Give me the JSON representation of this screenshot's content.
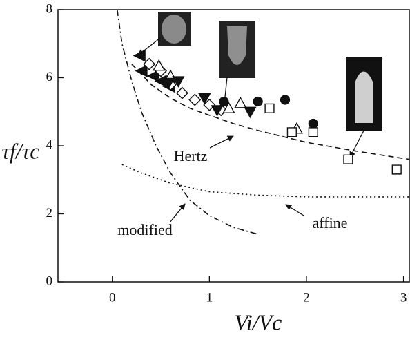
{
  "chart_data": {
    "type": "scatter",
    "xlabel": "Vi/Vc",
    "ylabel": "τf/τc",
    "xlim": [
      -0.56,
      3.06
    ],
    "ylim": [
      0,
      8
    ],
    "xticks": [
      0,
      1,
      2,
      3
    ],
    "yticks": [
      0,
      2,
      4,
      6,
      8
    ],
    "annotations": [
      "Hertz",
      "modified",
      "affine"
    ],
    "curves": [
      {
        "label_index": 0,
        "dash": "8,5",
        "color": "#111111",
        "x": [
          0.2,
          0.4,
          0.6,
          0.8,
          1.0,
          1.25,
          1.5,
          2.0,
          2.5,
          3.06
        ],
        "y": [
          6.4,
          5.8,
          5.4,
          5.1,
          4.9,
          4.65,
          4.45,
          4.1,
          3.85,
          3.6
        ]
      },
      {
        "label_index": 1,
        "dash": "9,4,2,4",
        "color": "#111111",
        "x": [
          0.05,
          0.1,
          0.2,
          0.3,
          0.45,
          0.6,
          0.8,
          1.0,
          1.25,
          1.5
        ],
        "y": [
          8,
          7.0,
          5.9,
          5.0,
          4.0,
          3.2,
          2.4,
          1.95,
          1.6,
          1.4
        ]
      },
      {
        "label_index": 2,
        "dash": "2,4",
        "color": "#111111",
        "x": [
          0.1,
          0.3,
          0.6,
          1.0,
          1.5,
          2.0,
          2.5,
          3.06
        ],
        "y": [
          3.45,
          3.2,
          2.9,
          2.65,
          2.55,
          2.5,
          2.5,
          2.5
        ]
      }
    ],
    "series": [
      {
        "marker": "triangle-left",
        "filled": true,
        "color": "#111111",
        "x": [
          0.28,
          0.3,
          0.42,
          0.5,
          0.58
        ],
        "values": [
          6.65,
          6.2,
          6.05,
          5.9,
          5.75
        ]
      },
      {
        "marker": "diamond",
        "filled": false,
        "color": "#111111",
        "x": [
          0.38,
          0.5,
          0.6,
          0.72,
          0.85,
          1.0,
          1.12
        ],
        "values": [
          6.4,
          6.2,
          5.8,
          5.55,
          5.35,
          5.2,
          5.05
        ]
      },
      {
        "marker": "triangle-up",
        "filled": false,
        "color": "#111111",
        "x": [
          0.48,
          0.6,
          1.2,
          1.32,
          1.9
        ],
        "values": [
          6.35,
          6.05,
          5.1,
          5.25,
          4.5
        ]
      },
      {
        "marker": "triangle-down",
        "filled": true,
        "color": "#111111",
        "x": [
          0.58,
          0.68,
          0.95,
          1.08,
          1.42
        ],
        "values": [
          5.85,
          5.9,
          5.4,
          5.05,
          5.0
        ]
      },
      {
        "marker": "circle",
        "filled": true,
        "color": "#111111",
        "x": [
          1.15,
          1.5,
          1.78,
          2.07
        ],
        "values": [
          5.3,
          5.3,
          5.35,
          4.65
        ]
      },
      {
        "marker": "square",
        "filled": false,
        "color": "#111111",
        "x": [
          1.62,
          1.85,
          2.07,
          2.43,
          2.93
        ],
        "values": [
          5.1,
          4.4,
          4.4,
          3.6,
          3.3
        ]
      }
    ]
  }
}
